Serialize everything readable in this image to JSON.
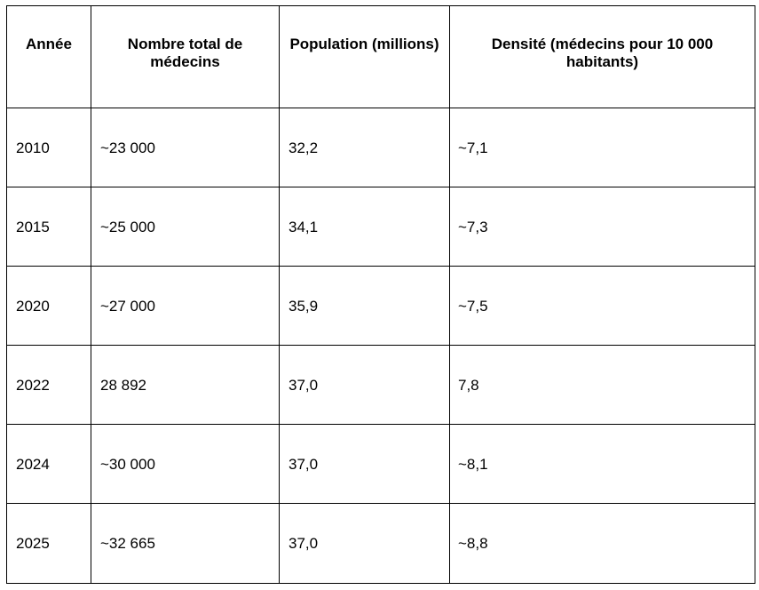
{
  "table": {
    "headers": [
      "Année",
      "Nombre total de médecins",
      "Population (millions)",
      "Densité (médecins pour 10 000 habitants)"
    ],
    "rows": [
      [
        "2010",
        "~23 000",
        "32,2",
        "~7,1"
      ],
      [
        "2015",
        "~25 000",
        "34,1",
        "~7,3"
      ],
      [
        "2020",
        "~27 000",
        "35,9",
        "~7,5"
      ],
      [
        "2022",
        "28 892",
        "37,0",
        "7,8"
      ],
      [
        "2024",
        "~30 000",
        "37,0",
        "~8,1"
      ],
      [
        "2025",
        "~32 665",
        "37,0",
        "~8,8"
      ]
    ]
  }
}
